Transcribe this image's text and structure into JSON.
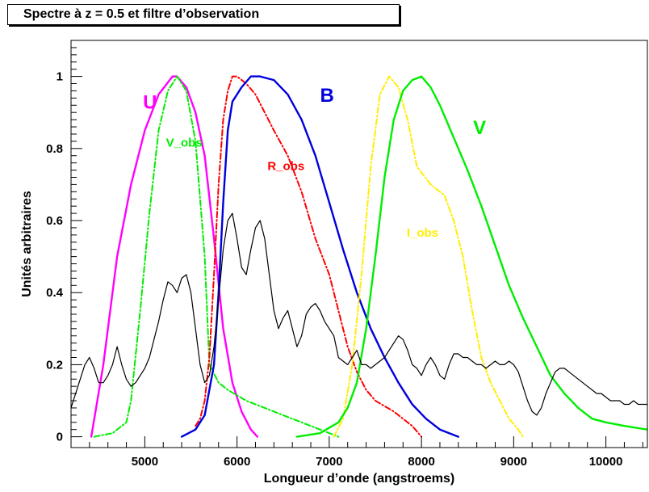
{
  "chart_data": {
    "type": "line",
    "title": "Spectre à z = 0.5 et filtre d’observation",
    "xlabel": "Longueur d’onde (angstroems)",
    "ylabel": "Unités arbitraires",
    "xlim": [
      4200,
      10450
    ],
    "ylim": [
      -0.03,
      1.1
    ],
    "x_ticks": [
      5000,
      6000,
      7000,
      8000,
      9000,
      10000
    ],
    "y_ticks": [
      0,
      0.2,
      0.4,
      0.6,
      0.8,
      1
    ],
    "grid": false,
    "series": [
      {
        "name": "U",
        "color": "#ff00ff",
        "style": "solid",
        "x": [
          4420,
          4550,
          4700,
          4850,
          5000,
          5150,
          5300,
          5350,
          5450,
          5550,
          5650,
          5750,
          5850,
          5950,
          6050,
          6150,
          6220
        ],
        "y": [
          0.0,
          0.2,
          0.5,
          0.7,
          0.85,
          0.95,
          1.0,
          1.0,
          0.97,
          0.9,
          0.78,
          0.55,
          0.3,
          0.15,
          0.07,
          0.02,
          0.0
        ]
      },
      {
        "name": "V_obs",
        "color": "#00ee00",
        "style": "dashdot",
        "x": [
          4450,
          4650,
          4800,
          4850,
          4950,
          5050,
          5150,
          5250,
          5350,
          5450,
          5550,
          5650,
          5700,
          5800,
          5900,
          6100,
          6500,
          6900,
          7100
        ],
        "y": [
          0.0,
          0.01,
          0.04,
          0.1,
          0.35,
          0.62,
          0.85,
          0.96,
          1.0,
          0.96,
          0.82,
          0.5,
          0.2,
          0.15,
          0.13,
          0.1,
          0.06,
          0.02,
          0.0
        ]
      },
      {
        "name": "R_obs",
        "color": "#ff0000",
        "style": "dashdot",
        "x": [
          5550,
          5600,
          5650,
          5700,
          5750,
          5800,
          5850,
          5900,
          5950,
          6000,
          6100,
          6200,
          6300,
          6400,
          6550,
          6700,
          6850,
          7000,
          7100,
          7200,
          7300,
          7400,
          7500,
          7700,
          7900,
          8000
        ],
        "y": [
          0.03,
          0.05,
          0.1,
          0.22,
          0.45,
          0.7,
          0.88,
          0.96,
          1.0,
          1.0,
          0.98,
          0.95,
          0.9,
          0.85,
          0.78,
          0.68,
          0.55,
          0.45,
          0.35,
          0.25,
          0.18,
          0.13,
          0.1,
          0.07,
          0.03,
          0.0
        ]
      },
      {
        "name": "B",
        "color": "#0000dd",
        "style": "solid",
        "x": [
          5400,
          5550,
          5650,
          5750,
          5800,
          5850,
          5900,
          5950,
          6050,
          6150,
          6250,
          6400,
          6550,
          6700,
          6850,
          7000,
          7150,
          7300,
          7450,
          7600,
          7750,
          7900,
          8050,
          8200,
          8400
        ],
        "y": [
          0.0,
          0.02,
          0.06,
          0.2,
          0.4,
          0.65,
          0.85,
          0.93,
          0.97,
          1.0,
          1.0,
          0.99,
          0.95,
          0.88,
          0.78,
          0.65,
          0.52,
          0.4,
          0.3,
          0.22,
          0.15,
          0.09,
          0.05,
          0.02,
          0.0
        ]
      },
      {
        "name": "I_obs",
        "color": "#ffee00",
        "style": "dashdot",
        "x": [
          7050,
          7150,
          7250,
          7350,
          7450,
          7550,
          7650,
          7750,
          7850,
          7950,
          8100,
          8250,
          8350,
          8450,
          8550,
          8650,
          8750,
          8850,
          8950,
          9050,
          9100
        ],
        "y": [
          0.0,
          0.05,
          0.2,
          0.45,
          0.75,
          0.95,
          1.0,
          0.97,
          0.88,
          0.75,
          0.7,
          0.67,
          0.6,
          0.5,
          0.35,
          0.22,
          0.15,
          0.1,
          0.05,
          0.02,
          0.0
        ]
      },
      {
        "name": "V",
        "color": "#00ee00",
        "style": "solid",
        "x": [
          6650,
          6900,
          7100,
          7200,
          7300,
          7400,
          7500,
          7600,
          7700,
          7800,
          7900,
          8000,
          8100,
          8200,
          8300,
          8400,
          8500,
          8650,
          8800,
          8950,
          9100,
          9250,
          9400,
          9550,
          9700,
          9850,
          10000,
          10200,
          10450
        ],
        "y": [
          0.0,
          0.01,
          0.04,
          0.08,
          0.15,
          0.3,
          0.5,
          0.72,
          0.88,
          0.96,
          0.99,
          1.0,
          0.97,
          0.92,
          0.86,
          0.8,
          0.74,
          0.64,
          0.53,
          0.42,
          0.33,
          0.25,
          0.17,
          0.12,
          0.08,
          0.05,
          0.04,
          0.03,
          0.02
        ]
      },
      {
        "name": "",
        "color": "#000000",
        "style": "solid",
        "x": [
          4200,
          4250,
          4300,
          4350,
          4400,
          4450,
          4500,
          4550,
          4600,
          4650,
          4700,
          4750,
          4800,
          4850,
          4900,
          4950,
          5000,
          5050,
          5100,
          5150,
          5200,
          5250,
          5300,
          5350,
          5400,
          5450,
          5500,
          5550,
          5600,
          5650,
          5700,
          5750,
          5800,
          5850,
          5900,
          5950,
          6000,
          6050,
          6100,
          6150,
          6200,
          6250,
          6300,
          6350,
          6400,
          6450,
          6500,
          6550,
          6600,
          6650,
          6700,
          6750,
          6800,
          6850,
          6900,
          6950,
          7000,
          7050,
          7100,
          7150,
          7200,
          7250,
          7300,
          7350,
          7400,
          7450,
          7500,
          7550,
          7600,
          7650,
          7700,
          7750,
          7800,
          7850,
          7900,
          7950,
          8000,
          8050,
          8100,
          8150,
          8200,
          8250,
          8300,
          8350,
          8400,
          8450,
          8500,
          8550,
          8600,
          8650,
          8700,
          8750,
          8800,
          8850,
          8900,
          8950,
          9000,
          9050,
          9100,
          9150,
          9200,
          9250,
          9300,
          9350,
          9400,
          9450,
          9500,
          9550,
          9600,
          9650,
          9700,
          9750,
          9800,
          9850,
          9900,
          9950,
          10000,
          10050,
          10100,
          10150,
          10200,
          10250,
          10300,
          10350,
          10400,
          10450
        ],
        "y": [
          0.08,
          0.12,
          0.16,
          0.2,
          0.22,
          0.19,
          0.15,
          0.15,
          0.17,
          0.2,
          0.25,
          0.2,
          0.16,
          0.14,
          0.15,
          0.17,
          0.19,
          0.22,
          0.27,
          0.32,
          0.38,
          0.43,
          0.42,
          0.4,
          0.44,
          0.45,
          0.4,
          0.3,
          0.2,
          0.15,
          0.17,
          0.25,
          0.38,
          0.52,
          0.6,
          0.62,
          0.55,
          0.47,
          0.45,
          0.52,
          0.58,
          0.6,
          0.55,
          0.45,
          0.35,
          0.3,
          0.33,
          0.35,
          0.3,
          0.25,
          0.28,
          0.34,
          0.36,
          0.37,
          0.35,
          0.32,
          0.3,
          0.28,
          0.22,
          0.21,
          0.2,
          0.22,
          0.24,
          0.2,
          0.2,
          0.19,
          0.2,
          0.21,
          0.22,
          0.24,
          0.26,
          0.28,
          0.27,
          0.24,
          0.2,
          0.19,
          0.17,
          0.2,
          0.22,
          0.2,
          0.17,
          0.16,
          0.2,
          0.23,
          0.23,
          0.22,
          0.22,
          0.21,
          0.2,
          0.2,
          0.19,
          0.2,
          0.21,
          0.2,
          0.2,
          0.21,
          0.2,
          0.18,
          0.14,
          0.1,
          0.07,
          0.06,
          0.08,
          0.12,
          0.15,
          0.18,
          0.19,
          0.19,
          0.18,
          0.17,
          0.16,
          0.15,
          0.14,
          0.13,
          0.12,
          0.12,
          0.11,
          0.1,
          0.1,
          0.1,
          0.09,
          0.09,
          0.1,
          0.09,
          0.09,
          0.09
        ]
      }
    ],
    "annotations": [
      {
        "text": "U",
        "x": 4980,
        "y": 0.91,
        "color": "#ff00ff",
        "size": "big"
      },
      {
        "text": "B",
        "x": 6900,
        "y": 0.93,
        "color": "#0000dd",
        "size": "big"
      },
      {
        "text": "V",
        "x": 8560,
        "y": 0.84,
        "color": "#00ee00",
        "size": "big"
      },
      {
        "text": "V_obs",
        "x": 5230,
        "y": 0.805,
        "color": "#00ee00",
        "size": "small"
      },
      {
        "text": "R_obs",
        "x": 6330,
        "y": 0.74,
        "color": "#ff0000",
        "size": "small"
      },
      {
        "text": "I_obs",
        "x": 7840,
        "y": 0.555,
        "color": "#ffee00",
        "size": "small"
      }
    ]
  }
}
